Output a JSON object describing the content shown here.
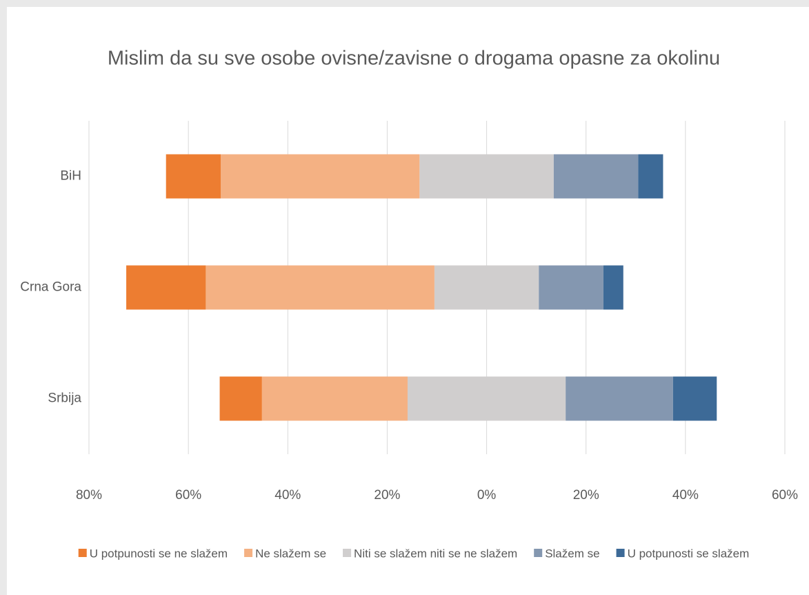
{
  "chart_data": {
    "type": "bar",
    "orientation": "horizontal",
    "diverging": true,
    "title": "Mislim da su sve osobe ovisne/zavisne o drogama opasne za okolinu",
    "categories": [
      "BiH",
      "Crna Gora",
      "Srbija"
    ],
    "series": [
      {
        "name": "U potpunosti se ne slažem",
        "color": "#ed7d31",
        "values": [
          11,
          16,
          8.5
        ]
      },
      {
        "name": "Ne slažem se",
        "color": "#f4b183",
        "values": [
          40,
          46,
          29.3
        ]
      },
      {
        "name": "Niti se slažem niti se ne slažem",
        "color": "#d0cece",
        "values": [
          27,
          21,
          31.8
        ]
      },
      {
        "name": "Slažem se",
        "color": "#8497b0",
        "values": [
          17,
          13,
          21.6
        ]
      },
      {
        "name": "U potpunosti se slažem",
        "color": "#3d6a97",
        "values": [
          5,
          4,
          8.8
        ]
      }
    ],
    "xlim": [
      -80,
      60
    ],
    "xticks": [
      {
        "value": -80,
        "label": "80%"
      },
      {
        "value": -60,
        "label": "60%"
      },
      {
        "value": -40,
        "label": "40%"
      },
      {
        "value": -20,
        "label": "20%"
      },
      {
        "value": 0,
        "label": "0%"
      },
      {
        "value": 20,
        "label": "20%"
      },
      {
        "value": 40,
        "label": "40%"
      },
      {
        "value": 60,
        "label": "60%"
      }
    ],
    "grid": true,
    "legend": "bottom"
  }
}
